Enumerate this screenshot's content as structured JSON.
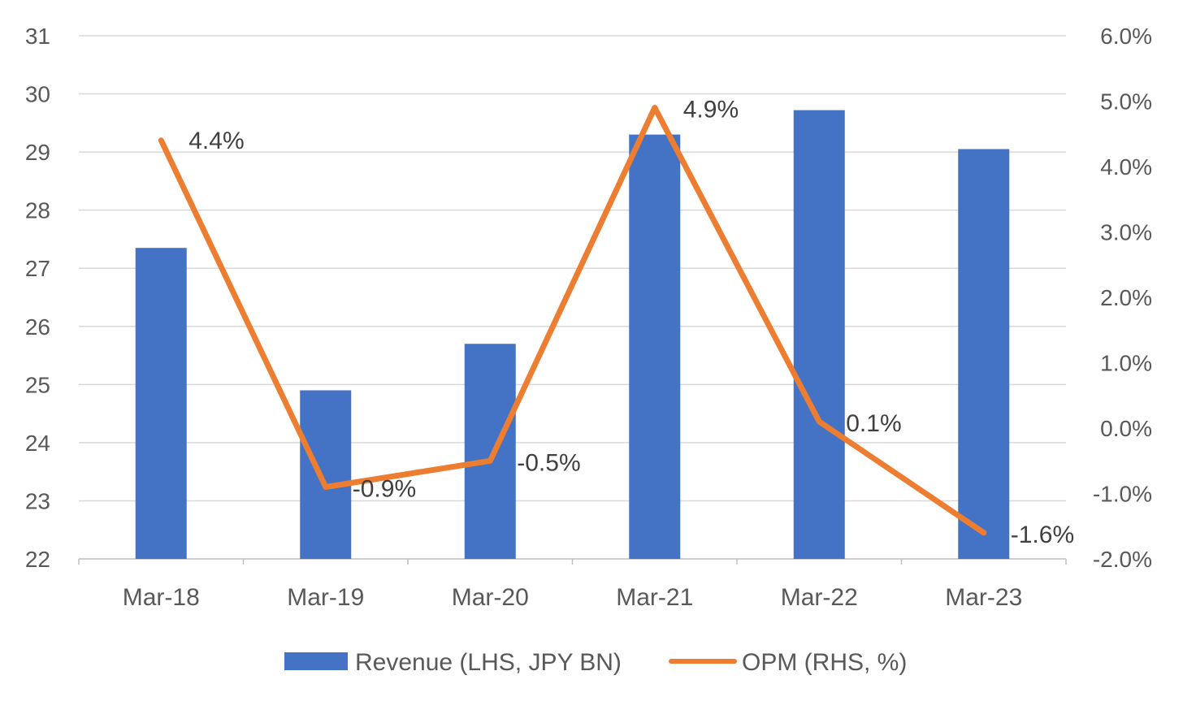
{
  "chart_data": {
    "type": "bar",
    "categories": [
      "Mar-18",
      "Mar-19",
      "Mar-20",
      "Mar-21",
      "Mar-22",
      "Mar-23"
    ],
    "series": [
      {
        "name": "Revenue (LHS, JPY BN)",
        "type": "bar",
        "axis": "left",
        "color": "#4472C4",
        "values": [
          27.35,
          24.9,
          25.7,
          29.3,
          29.72,
          29.05
        ]
      },
      {
        "name": "OPM (RHS, %)",
        "type": "line",
        "axis": "right",
        "color": "#ED7D31",
        "values": [
          4.4,
          -0.9,
          -0.5,
          4.9,
          0.1,
          -1.6
        ],
        "data_labels": [
          "4.4%",
          "-0.9%",
          "-0.5%",
          "4.9%",
          "0.1%",
          "-1.6%"
        ]
      }
    ],
    "y_left": {
      "ylim": [
        22,
        31
      ],
      "ticks": [
        "22",
        "23",
        "24",
        "25",
        "26",
        "27",
        "28",
        "29",
        "30",
        "31"
      ]
    },
    "y_right": {
      "ylim": [
        -2.0,
        6.0
      ],
      "ticks": [
        "-2.0%",
        "-1.0%",
        "0.0%",
        "1.0%",
        "2.0%",
        "3.0%",
        "4.0%",
        "5.0%",
        "6.0%"
      ]
    },
    "title": "",
    "xlabel": "",
    "ylabel": "",
    "grid": true,
    "legend": "bottom"
  },
  "colors": {
    "bar": "#4472C4",
    "line": "#ED7D31",
    "grid": "#D9D9D9",
    "axis": "#BFBFBF"
  }
}
